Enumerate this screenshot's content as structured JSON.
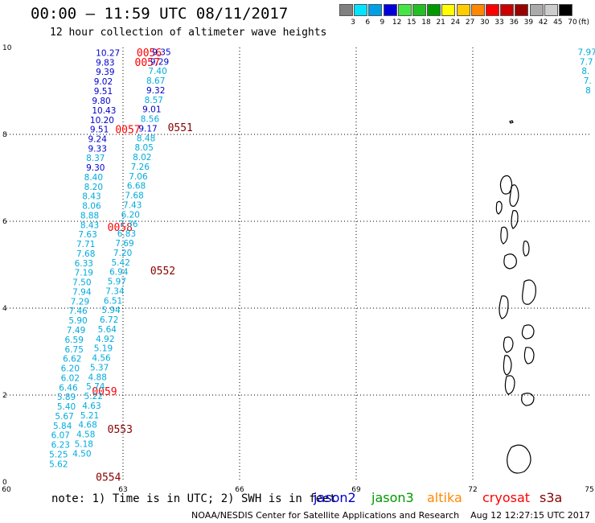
{
  "header": {
    "title": "00:00 — 11:59 UTC 08/11/2017",
    "subtitle": "12 hour collection of altimeter wave heights"
  },
  "legend": {
    "unit": "(ft)",
    "items": [
      {
        "label": "3",
        "color": "#808080"
      },
      {
        "label": "6",
        "color": "#00e5ff"
      },
      {
        "label": "9",
        "color": "#00a0e6"
      },
      {
        "label": "12",
        "color": "#0000dd"
      },
      {
        "label": "15",
        "color": "#44e644"
      },
      {
        "label": "18",
        "color": "#22c022"
      },
      {
        "label": "21",
        "color": "#009900"
      },
      {
        "label": "24",
        "color": "#ffff00"
      },
      {
        "label": "27",
        "color": "#ffcc00"
      },
      {
        "label": "30",
        "color": "#ff8800"
      },
      {
        "label": "33",
        "color": "#ff0000"
      },
      {
        "label": "36",
        "color": "#cc0000"
      },
      {
        "label": "39",
        "color": "#990000"
      },
      {
        "label": "42",
        "color": "#aaaaaa"
      },
      {
        "label": "45",
        "color": "#cccccc"
      },
      {
        "label": "70",
        "color": "#000000"
      }
    ]
  },
  "footer": {
    "note": "note: 1) Time is in UTC; 2) SWH is in feet",
    "satellites": [
      {
        "name": "jason2",
        "color": "#0000cc"
      },
      {
        "name": "jason3",
        "color": "#009900"
      },
      {
        "name": "altika",
        "color": "#ff8800"
      },
      {
        "name": "cryosat",
        "color": "#ff0000"
      },
      {
        "name": "s3a",
        "color": "#880000"
      }
    ],
    "credit": "NOAA/NESDIS Center for Satellite Applications and Research    Aug 12 12:27:15 UTC 2017"
  },
  "chart_data": {
    "type": "scatter",
    "xlim": [
      60,
      75
    ],
    "ylim": [
      0,
      10
    ],
    "x_ticks": [
      "60",
      "63",
      "66",
      "69",
      "72",
      "75"
    ],
    "y_ticks": [
      "0",
      "2",
      "4",
      "6",
      "8",
      "10"
    ],
    "grid": true,
    "colors": {
      "dark_blue": "#0000cc",
      "cyan": "#00aadd",
      "red_time": "#ff0000",
      "dark_red_time": "#880000"
    },
    "time_labels": [
      {
        "text": "0056",
        "x": 63.35,
        "y": 9.87,
        "color": "red_time"
      },
      {
        "text": "0057",
        "x": 63.3,
        "y": 9.65,
        "color": "red_time"
      },
      {
        "text": "0057",
        "x": 62.8,
        "y": 8.1,
        "color": "red_time"
      },
      {
        "text": "0551",
        "x": 64.15,
        "y": 8.15,
        "color": "dark_red_time"
      },
      {
        "text": "0058",
        "x": 62.6,
        "y": 5.85,
        "color": "red_time"
      },
      {
        "text": "0552",
        "x": 63.7,
        "y": 4.85,
        "color": "dark_red_time"
      },
      {
        "text": "0059",
        "x": 62.2,
        "y": 2.07,
        "color": "red_time"
      },
      {
        "text": "0553",
        "x": 62.6,
        "y": 1.2,
        "color": "dark_red_time"
      },
      {
        "text": "0554",
        "x": 62.3,
        "y": 0.1,
        "color": "dark_red_time"
      }
    ],
    "swh_points": [
      {
        "t": "10.27",
        "x": 62.3,
        "y": 9.88,
        "c": "dark_blue"
      },
      {
        "t": "9.83",
        "x": 62.3,
        "y": 9.66,
        "c": "dark_blue"
      },
      {
        "t": "9.39",
        "x": 62.3,
        "y": 9.44,
        "c": "dark_blue"
      },
      {
        "t": "9.02",
        "x": 62.25,
        "y": 9.22,
        "c": "dark_blue"
      },
      {
        "t": "9.51",
        "x": 62.25,
        "y": 9.0,
        "c": "dark_blue"
      },
      {
        "t": "9.80",
        "x": 62.2,
        "y": 8.78,
        "c": "dark_blue"
      },
      {
        "t": "10.43",
        "x": 62.2,
        "y": 8.56,
        "c": "dark_blue"
      },
      {
        "t": "10.20",
        "x": 62.15,
        "y": 8.33,
        "c": "dark_blue"
      },
      {
        "t": "9.51",
        "x": 62.15,
        "y": 8.12,
        "c": "dark_blue"
      },
      {
        "t": "9.24",
        "x": 62.1,
        "y": 7.9,
        "c": "dark_blue"
      },
      {
        "t": "9.33",
        "x": 62.1,
        "y": 7.68,
        "c": "dark_blue"
      },
      {
        "t": "8.37",
        "x": 62.05,
        "y": 7.46,
        "c": "cyan"
      },
      {
        "t": "9.30",
        "x": 62.05,
        "y": 7.24,
        "c": "dark_blue"
      },
      {
        "t": "8.40",
        "x": 62.0,
        "y": 7.02,
        "c": "cyan"
      },
      {
        "t": "8.20",
        "x": 62.0,
        "y": 6.8,
        "c": "cyan"
      },
      {
        "t": "8.43",
        "x": 61.95,
        "y": 6.58,
        "c": "cyan"
      },
      {
        "t": "8.06",
        "x": 61.95,
        "y": 6.36,
        "c": "cyan"
      },
      {
        "t": "8.88",
        "x": 61.9,
        "y": 6.14,
        "c": "cyan"
      },
      {
        "t": "8.43",
        "x": 61.9,
        "y": 5.92,
        "c": "cyan"
      },
      {
        "t": "7.63",
        "x": 61.85,
        "y": 5.7,
        "c": "cyan"
      },
      {
        "t": "7.71",
        "x": 61.8,
        "y": 5.48,
        "c": "cyan"
      },
      {
        "t": "7.68",
        "x": 61.8,
        "y": 5.26,
        "c": "cyan"
      },
      {
        "t": "6.33",
        "x": 61.75,
        "y": 5.04,
        "c": "cyan"
      },
      {
        "t": "7.19",
        "x": 61.75,
        "y": 4.82,
        "c": "cyan"
      },
      {
        "t": "7.50",
        "x": 61.7,
        "y": 4.6,
        "c": "cyan"
      },
      {
        "t": "7.94",
        "x": 61.7,
        "y": 4.38,
        "c": "cyan"
      },
      {
        "t": "7.29",
        "x": 61.65,
        "y": 4.16,
        "c": "cyan"
      },
      {
        "t": "7.46",
        "x": 61.6,
        "y": 3.94,
        "c": "cyan"
      },
      {
        "t": "5.90",
        "x": 61.6,
        "y": 3.72,
        "c": "cyan"
      },
      {
        "t": "7.49",
        "x": 61.55,
        "y": 3.5,
        "c": "cyan"
      },
      {
        "t": "6.59",
        "x": 61.5,
        "y": 3.28,
        "c": "cyan"
      },
      {
        "t": "6.75",
        "x": 61.5,
        "y": 3.06,
        "c": "cyan"
      },
      {
        "t": "6.62",
        "x": 61.45,
        "y": 2.84,
        "c": "cyan"
      },
      {
        "t": "6.20",
        "x": 61.4,
        "y": 2.62,
        "c": "cyan"
      },
      {
        "t": "6.02",
        "x": 61.4,
        "y": 2.4,
        "c": "cyan"
      },
      {
        "t": "6.46",
        "x": 61.35,
        "y": 2.18,
        "c": "cyan"
      },
      {
        "t": "5.89",
        "x": 61.3,
        "y": 1.96,
        "c": "cyan"
      },
      {
        "t": "5.40",
        "x": 61.3,
        "y": 1.74,
        "c": "cyan"
      },
      {
        "t": "5.67",
        "x": 61.25,
        "y": 1.52,
        "c": "cyan"
      },
      {
        "t": "5.84",
        "x": 61.2,
        "y": 1.3,
        "c": "cyan"
      },
      {
        "t": "6.07",
        "x": 61.15,
        "y": 1.08,
        "c": "cyan"
      },
      {
        "t": "6.23",
        "x": 61.15,
        "y": 0.86,
        "c": "cyan"
      },
      {
        "t": "5.25",
        "x": 61.1,
        "y": 0.64,
        "c": "cyan"
      },
      {
        "t": "5.62",
        "x": 61.1,
        "y": 0.42,
        "c": "cyan"
      },
      {
        "t": "9.35",
        "x": 63.75,
        "y": 9.9,
        "c": "dark_blue"
      },
      {
        "t": "9.29",
        "x": 63.7,
        "y": 9.68,
        "c": "dark_blue"
      },
      {
        "t": "7.40",
        "x": 63.65,
        "y": 9.46,
        "c": "cyan"
      },
      {
        "t": "8.67",
        "x": 63.6,
        "y": 9.24,
        "c": "cyan"
      },
      {
        "t": "9.32",
        "x": 63.6,
        "y": 9.02,
        "c": "dark_blue"
      },
      {
        "t": "8.57",
        "x": 63.55,
        "y": 8.8,
        "c": "cyan"
      },
      {
        "t": "9.01",
        "x": 63.5,
        "y": 8.58,
        "c": "dark_blue"
      },
      {
        "t": "8.56",
        "x": 63.45,
        "y": 8.36,
        "c": "cyan"
      },
      {
        "t": "9.17",
        "x": 63.4,
        "y": 8.14,
        "c": "dark_blue"
      },
      {
        "t": "8.48",
        "x": 63.35,
        "y": 7.92,
        "c": "cyan"
      },
      {
        "t": "8.05",
        "x": 63.3,
        "y": 7.7,
        "c": "cyan"
      },
      {
        "t": "8.02",
        "x": 63.25,
        "y": 7.48,
        "c": "cyan"
      },
      {
        "t": "7.26",
        "x": 63.2,
        "y": 7.26,
        "c": "cyan"
      },
      {
        "t": "7.06",
        "x": 63.15,
        "y": 7.04,
        "c": "cyan"
      },
      {
        "t": "6.68",
        "x": 63.1,
        "y": 6.82,
        "c": "cyan"
      },
      {
        "t": "7.68",
        "x": 63.05,
        "y": 6.6,
        "c": "cyan"
      },
      {
        "t": "7.43",
        "x": 63.0,
        "y": 6.38,
        "c": "cyan"
      },
      {
        "t": "6.20",
        "x": 62.95,
        "y": 6.16,
        "c": "cyan"
      },
      {
        "t": "7.36",
        "x": 62.9,
        "y": 5.94,
        "c": "cyan"
      },
      {
        "t": "6.83",
        "x": 62.85,
        "y": 5.72,
        "c": "cyan"
      },
      {
        "t": "7.69",
        "x": 62.8,
        "y": 5.5,
        "c": "cyan"
      },
      {
        "t": "7.20",
        "x": 62.75,
        "y": 5.28,
        "c": "cyan"
      },
      {
        "t": "5.42",
        "x": 62.7,
        "y": 5.06,
        "c": "cyan"
      },
      {
        "t": "6.94",
        "x": 62.65,
        "y": 4.84,
        "c": "cyan"
      },
      {
        "t": "5.97",
        "x": 62.6,
        "y": 4.62,
        "c": "cyan"
      },
      {
        "t": "7.34",
        "x": 62.55,
        "y": 4.4,
        "c": "cyan"
      },
      {
        "t": "6.51",
        "x": 62.5,
        "y": 4.18,
        "c": "cyan"
      },
      {
        "t": "5.94",
        "x": 62.45,
        "y": 3.96,
        "c": "cyan"
      },
      {
        "t": "6.72",
        "x": 62.4,
        "y": 3.74,
        "c": "cyan"
      },
      {
        "t": "5.64",
        "x": 62.35,
        "y": 3.52,
        "c": "cyan"
      },
      {
        "t": "4.92",
        "x": 62.3,
        "y": 3.3,
        "c": "cyan"
      },
      {
        "t": "5.19",
        "x": 62.25,
        "y": 3.08,
        "c": "cyan"
      },
      {
        "t": "4.56",
        "x": 62.2,
        "y": 2.86,
        "c": "cyan"
      },
      {
        "t": "5.37",
        "x": 62.15,
        "y": 2.64,
        "c": "cyan"
      },
      {
        "t": "4.88",
        "x": 62.1,
        "y": 2.42,
        "c": "cyan"
      },
      {
        "t": "5.74",
        "x": 62.05,
        "y": 2.2,
        "c": "cyan"
      },
      {
        "t": "5.22",
        "x": 62.0,
        "y": 1.98,
        "c": "cyan"
      },
      {
        "t": "4.63",
        "x": 61.95,
        "y": 1.76,
        "c": "cyan"
      },
      {
        "t": "5.21",
        "x": 61.9,
        "y": 1.54,
        "c": "cyan"
      },
      {
        "t": "4.68",
        "x": 61.85,
        "y": 1.32,
        "c": "cyan"
      },
      {
        "t": "4.58",
        "x": 61.8,
        "y": 1.1,
        "c": "cyan"
      },
      {
        "t": "5.18",
        "x": 61.75,
        "y": 0.88,
        "c": "cyan"
      },
      {
        "t": "4.50",
        "x": 61.7,
        "y": 0.66,
        "c": "cyan"
      },
      {
        "t": "7.97",
        "x": 74.7,
        "y": 9.9,
        "c": "cyan"
      },
      {
        "t": "7.7",
        "x": 74.75,
        "y": 9.68,
        "c": "cyan"
      },
      {
        "t": "8.",
        "x": 74.8,
        "y": 9.46,
        "c": "cyan"
      },
      {
        "t": "7.",
        "x": 74.85,
        "y": 9.24,
        "c": "cyan"
      },
      {
        "t": "8",
        "x": 74.9,
        "y": 9.02,
        "c": "cyan"
      }
    ]
  }
}
